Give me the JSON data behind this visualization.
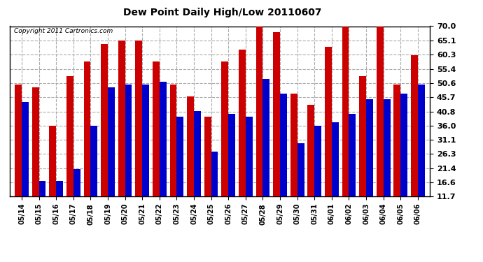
{
  "title": "Dew Point Daily High/Low 20110607",
  "copyright": "Copyright 2011 Cartronics.com",
  "dates": [
    "05/14",
    "05/15",
    "05/16",
    "05/17",
    "05/18",
    "05/19",
    "05/20",
    "05/21",
    "05/22",
    "05/23",
    "05/24",
    "05/25",
    "05/26",
    "05/27",
    "05/28",
    "05/29",
    "05/30",
    "05/31",
    "06/01",
    "06/02",
    "06/03",
    "06/04",
    "06/05",
    "06/06"
  ],
  "highs": [
    50.0,
    49.0,
    36.0,
    53.0,
    58.0,
    64.0,
    65.0,
    65.0,
    58.0,
    50.0,
    46.0,
    39.0,
    58.0,
    62.0,
    71.0,
    68.0,
    47.0,
    43.0,
    63.0,
    70.0,
    53.0,
    70.0,
    50.0,
    60.0
  ],
  "lows": [
    44.0,
    17.0,
    17.0,
    21.0,
    36.0,
    49.0,
    50.0,
    50.0,
    51.0,
    39.0,
    41.0,
    27.0,
    40.0,
    39.0,
    52.0,
    47.0,
    30.0,
    36.0,
    37.0,
    40.0,
    45.0,
    45.0,
    47.0,
    50.0
  ],
  "high_color": "#cc0000",
  "low_color": "#0000cc",
  "bg_color": "#ffffff",
  "plot_bg_color": "#ffffff",
  "grid_color": "#aaaaaa",
  "yticks": [
    11.7,
    16.6,
    21.4,
    26.3,
    31.1,
    36.0,
    40.8,
    45.7,
    50.6,
    55.4,
    60.3,
    65.1,
    70.0
  ],
  "ylim": [
    11.7,
    70.0
  ],
  "bar_width": 0.4
}
